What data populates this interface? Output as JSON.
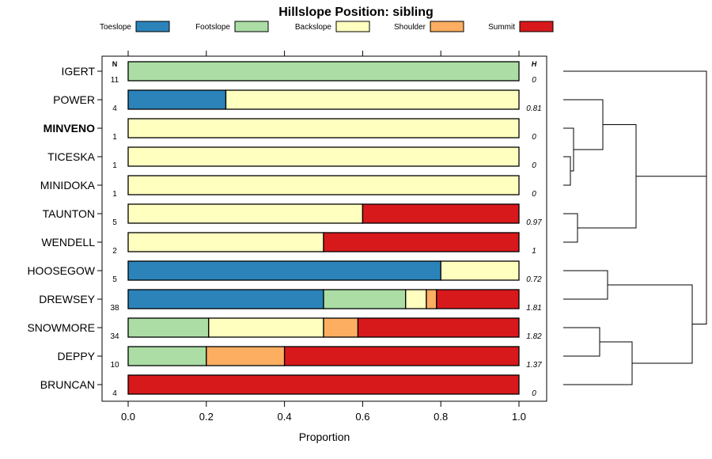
{
  "chart_data": {
    "type": "bar",
    "stacked": true,
    "orientation": "horizontal",
    "title": "Hillslope Position: sibling",
    "xlabel": "Proportion",
    "xlim": [
      0,
      1
    ],
    "x_ticks": [
      "0.0",
      "0.2",
      "0.4",
      "0.6",
      "0.8",
      "1.0"
    ],
    "n_header": "N",
    "h_header": "H",
    "legend_position": "top",
    "categories": [
      "Toeslope",
      "Footslope",
      "Backslope",
      "Shoulder",
      "Summit"
    ],
    "colors": [
      "#2b83ba",
      "#abdda4",
      "#ffffbf",
      "#fdae61",
      "#d7191c"
    ],
    "rows": [
      {
        "label": "IGERT",
        "bold": false,
        "n": "11",
        "h": "0",
        "values": [
          0,
          1,
          0,
          0,
          0
        ]
      },
      {
        "label": "POWER",
        "bold": false,
        "n": "4",
        "h": "0.81",
        "values": [
          0.25,
          0,
          0.75,
          0,
          0
        ]
      },
      {
        "label": "MINVENO",
        "bold": true,
        "n": "1",
        "h": "0",
        "values": [
          0,
          0,
          1,
          0,
          0
        ]
      },
      {
        "label": "TICESKA",
        "bold": false,
        "n": "1",
        "h": "0",
        "values": [
          0,
          0,
          1,
          0,
          0
        ]
      },
      {
        "label": "MINIDOKA",
        "bold": false,
        "n": "1",
        "h": "0",
        "values": [
          0,
          0,
          1,
          0,
          0
        ]
      },
      {
        "label": "TAUNTON",
        "bold": false,
        "n": "5",
        "h": "0.97",
        "values": [
          0,
          0,
          0.6,
          0,
          0.4
        ]
      },
      {
        "label": "WENDELL",
        "bold": false,
        "n": "2",
        "h": "1",
        "values": [
          0,
          0,
          0.5,
          0,
          0.5
        ]
      },
      {
        "label": "HOOSEGOW",
        "bold": false,
        "n": "5",
        "h": "0.72",
        "values": [
          0.8,
          0,
          0.2,
          0,
          0
        ]
      },
      {
        "label": "DREWSEY",
        "bold": false,
        "n": "38",
        "h": "1.81",
        "values": [
          0.5,
          0.21,
          0.053,
          0.026,
          0.211
        ]
      },
      {
        "label": "SNOWMORE",
        "bold": false,
        "n": "34",
        "h": "1.82",
        "values": [
          0,
          0.206,
          0.294,
          0.088,
          0.412
        ]
      },
      {
        "label": "DEPPY",
        "bold": false,
        "n": "10",
        "h": "1.37",
        "values": [
          0,
          0.2,
          0,
          0.2,
          0.6
        ]
      },
      {
        "label": "BRUNCAN",
        "bold": false,
        "n": "4",
        "h": "0",
        "values": [
          0,
          0,
          0,
          0,
          1
        ]
      }
    ],
    "dendrogram": {
      "type": "hierarchical-clustering",
      "merges": [
        [
          "TICESKA",
          "MINIDOKA"
        ],
        [
          "MINVENO",
          "TICESKA+MINIDOKA"
        ],
        [
          "POWER",
          "MINVENO+TICESKA+MINIDOKA"
        ],
        [
          "TAUNTON",
          "WENDELL"
        ],
        [
          "POWER-group",
          "TAUNTON+WENDELL"
        ],
        [
          "IGERT",
          "POWER-TAUNTON-group"
        ],
        [
          "HOOSEGOW",
          "DREWSEY"
        ],
        [
          "SNOWMORE",
          "DEPPY"
        ],
        [
          "SNOWMORE+DEPPY",
          "BRUNCAN"
        ],
        [
          "HOOSEGOW+DREWSEY",
          "SNOWMORE-DEPPY-BRUNCAN"
        ],
        [
          "upper-cluster",
          "lower-cluster"
        ]
      ]
    }
  }
}
